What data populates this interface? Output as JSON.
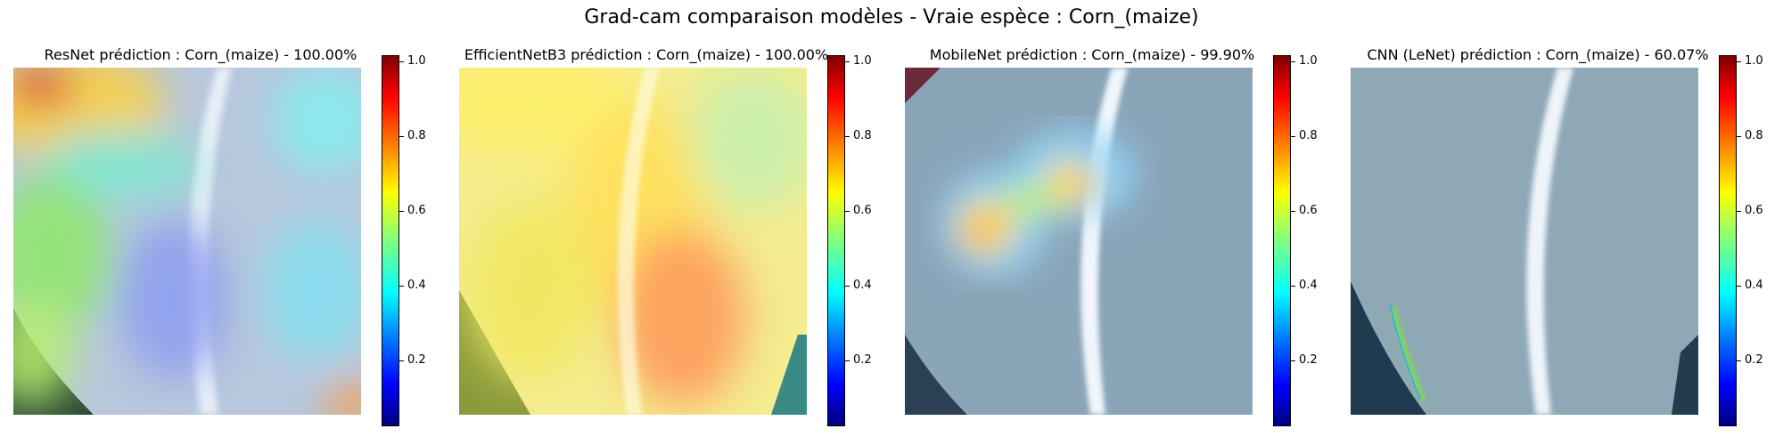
{
  "figure": {
    "suptitle": "Grad-cam comparaison modèles - Vraie espèce : Corn_(maize)"
  },
  "panels": [
    {
      "title": "ResNet prédiction : Corn_(maize) - 100.00%",
      "colorbar_ticks": [
        "0.2",
        "0.4",
        "0.6",
        "0.8",
        "1.0"
      ]
    },
    {
      "title": "EfficientNetB3 prédiction : Corn_(maize) - 100.00%",
      "colorbar_ticks": [
        "0.2",
        "0.4",
        "0.6",
        "0.8",
        "1.0"
      ]
    },
    {
      "title": "MobileNet prédiction : Corn_(maize) - 99.90%",
      "colorbar_ticks": [
        "0.2",
        "0.4",
        "0.6",
        "0.8",
        "1.0"
      ]
    },
    {
      "title": "CNN (LeNet) prédiction : Corn_(maize) - 60.07%",
      "colorbar_ticks": [
        "0.2",
        "0.4",
        "0.6",
        "0.8",
        "1.0"
      ]
    }
  ],
  "colormap": {
    "name": "jet",
    "stops": [
      "#00007f",
      "#0000ff",
      "#007fff",
      "#00ffff",
      "#7fff7f",
      "#ffff00",
      "#ff7f00",
      "#ff0000",
      "#7f0000"
    ]
  }
}
